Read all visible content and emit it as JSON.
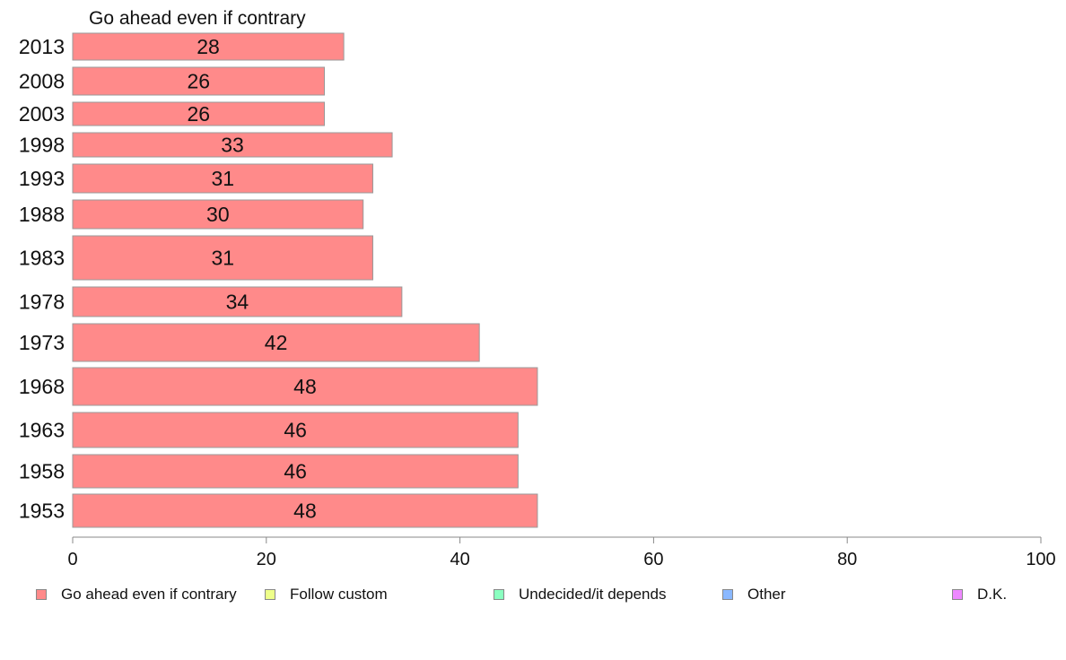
{
  "chart_data": {
    "type": "bar",
    "orientation": "horizontal",
    "title": "Go ahead even if contrary",
    "categories": [
      "2013",
      "2008",
      "2003",
      "1998",
      "1993",
      "1988",
      "1983",
      "1978",
      "1973",
      "1968",
      "1963",
      "1958",
      "1953"
    ],
    "series": [
      {
        "name": "Go ahead even if contrary",
        "color": "#ff8a8a",
        "values": [
          28,
          26,
          26,
          33,
          31,
          30,
          31,
          34,
          42,
          48,
          46,
          46,
          48
        ],
        "labels": [
          "28",
          "26",
          "26",
          "33",
          "31",
          "30",
          "31",
          "34",
          "42",
          "48",
          "46",
          "46",
          "48"
        ]
      }
    ],
    "xlim": [
      0,
      100
    ],
    "xticks": [
      0,
      20,
      40,
      60,
      80,
      100
    ],
    "grid": false,
    "legend": {
      "position": "bottom",
      "items": [
        {
          "label": "Go ahead even if contrary",
          "color": "#ff8a8a"
        },
        {
          "label": "Follow custom",
          "color": "#eeff8a"
        },
        {
          "label": "Undecided/it depends",
          "color": "#8affc0"
        },
        {
          "label": "Other",
          "color": "#8ab8ff"
        },
        {
          "label": "D.K.",
          "color": "#ee88ff"
        }
      ]
    }
  }
}
